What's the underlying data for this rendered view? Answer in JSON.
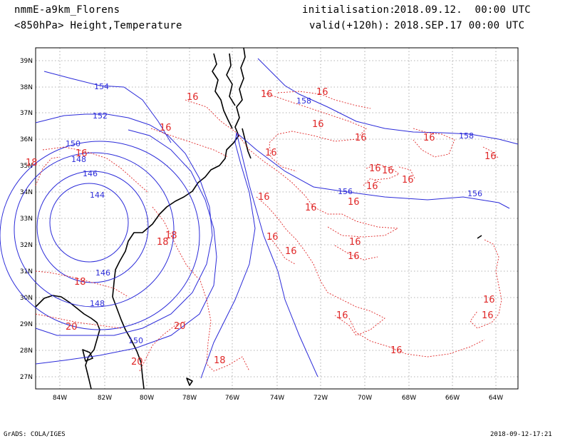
{
  "header": {
    "model": "nmmE-a9km_Florens",
    "level": "<850hPa> Height,Temperature",
    "init_label": "initialisation:",
    "init_value": "2018.09.12.  00:00 UTC",
    "valid_label": "valid(+120h):",
    "valid_value": "2018.SEP.17 00:00 UTC"
  },
  "footer": {
    "credit": "GrADS: COLA/IGES",
    "timestamp": "2018-09-12-17:21"
  },
  "map": {
    "lat_labels": [
      "39N",
      "38N",
      "37N",
      "36N",
      "35N",
      "34N",
      "33N",
      "32N",
      "31N",
      "30N",
      "29N",
      "28N",
      "27N"
    ],
    "lon_labels": [
      "84W",
      "82W",
      "80W",
      "78W",
      "76W",
      "74W",
      "72W",
      "70W",
      "68W",
      "66W",
      "64W"
    ],
    "colors": {
      "height": "#2b2bd9",
      "temperature": "#e02828",
      "coast": "#000000",
      "grid": "#9a9a9a"
    },
    "height_labels": [
      "154",
      "152",
      "150",
      "148",
      "146",
      "144",
      "146",
      "148",
      "150",
      "156",
      "156",
      "158",
      "158"
    ],
    "temperature_labels": [
      "16",
      "16",
      "16",
      "16",
      "16",
      "16",
      "16",
      "16",
      "16",
      "16",
      "16",
      "16",
      "16",
      "16",
      "16",
      "16",
      "16",
      "16",
      "16",
      "16",
      "16",
      "16",
      "16",
      "18",
      "18",
      "18",
      "18",
      "18",
      "20",
      "20",
      "20"
    ]
  }
}
